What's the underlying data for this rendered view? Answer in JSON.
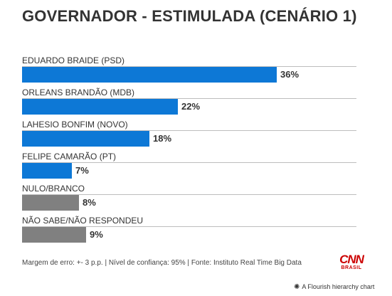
{
  "title": "GOVERNADOR - ESTIMULADA (CENÁRIO 1)",
  "chart_data": {
    "type": "bar",
    "orientation": "horizontal",
    "title": "GOVERNADOR - ESTIMULADA (CENÁRIO 1)",
    "categories": [
      "EDUARDO BRAIDE (PSD)",
      "ORLEANS BRANDÃO (MDB)",
      "LAHESIO BONFIM (NOVO)",
      "FELIPE CAMARÃO (PT)",
      "NULO/BRANCO",
      "NÃO SABE/NÃO RESPONDEU"
    ],
    "values": [
      36,
      22,
      18,
      7,
      8,
      9
    ],
    "value_labels": [
      "36%",
      "22%",
      "18%",
      "7%",
      "8%",
      "9%"
    ],
    "bar_colors": [
      "#0d78d6",
      "#0d78d6",
      "#0d78d6",
      "#0d78d6",
      "#808080",
      "#808080"
    ],
    "xlim": [
      0,
      40
    ],
    "grid": false,
    "legend": "none"
  },
  "footer": "Margem de erro: +- 3 p.p. | Nível de confiança: 95% | Fonte: Instituto Real Time Big Data",
  "logo": {
    "main": "CNN",
    "sub": "BRASIL"
  },
  "flourish": {
    "icon": "asterisk-icon",
    "text": "A Flourish hierarchy chart"
  }
}
